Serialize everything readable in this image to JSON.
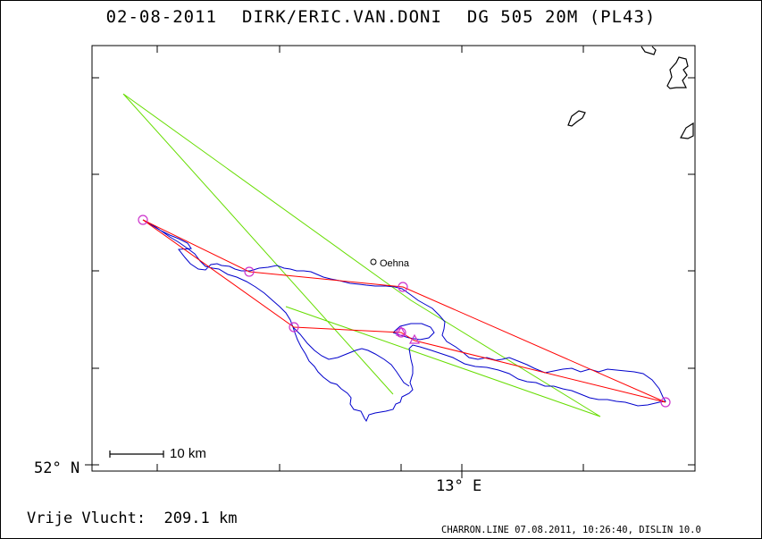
{
  "header": {
    "date": "02-08-2011",
    "pilots": "DIRK/ERIC.VAN.DONI",
    "glider": "DG 505 20M (PL43)"
  },
  "axes": {
    "lat_label": "52° N",
    "lon_label": "13° E"
  },
  "map": {
    "scale_label": "10 km",
    "place_label": "Oehna",
    "colors": {
      "track": "#0000cc",
      "task_line": "#ff0000",
      "sector_line": "#66dd00",
      "turnpoint": "#cc33cc",
      "coast": "#000000"
    }
  },
  "footer": {
    "distance_label": "Vrije Vlucht:",
    "distance_value": "209.1 km",
    "credit": "CHARRON.LINE 07.08.2011, 10:26:40, DISLIN 10.0"
  }
}
